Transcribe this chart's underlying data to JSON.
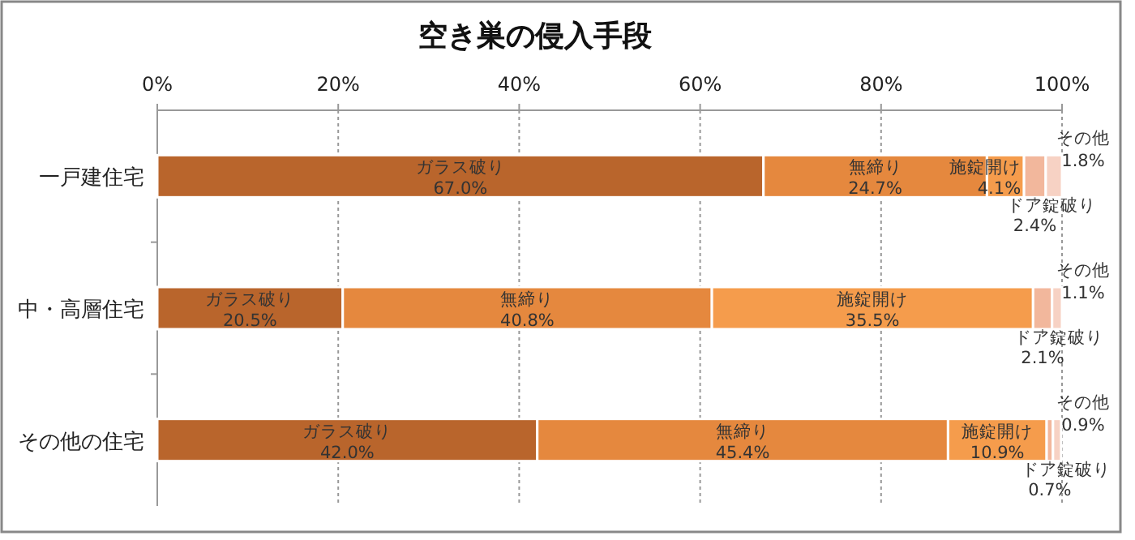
{
  "chart_data": {
    "type": "bar",
    "orientation": "horizontal",
    "stacked": true,
    "title": "空き巣の侵入手段",
    "categories": [
      "一戸建住宅",
      "中・高層住宅",
      "その他の住宅"
    ],
    "series": [
      {
        "name": "ガラス破り",
        "color": "#b9652c",
        "values": [
          67.0,
          20.5,
          42.0
        ],
        "value_labels": [
          "67.0%",
          "20.5%",
          "42.0%"
        ]
      },
      {
        "name": "無締り",
        "color": "#e5883e",
        "values": [
          24.7,
          40.8,
          45.4
        ],
        "value_labels": [
          "24.7%",
          "40.8%",
          "45.4%"
        ]
      },
      {
        "name": "施錠開け",
        "color": "#f59c4c",
        "values": [
          4.1,
          35.5,
          10.9
        ],
        "value_labels": [
          "4.1%",
          "35.5%",
          "10.9%"
        ]
      },
      {
        "name": "ドア錠破り",
        "color": "#f2b79c",
        "values": [
          2.4,
          2.1,
          0.7
        ],
        "value_labels": [
          "2.4%",
          "2.1%",
          "0.7%"
        ]
      },
      {
        "name": "その他",
        "color": "#f7d2c4",
        "values": [
          1.8,
          1.1,
          0.9
        ],
        "value_labels": [
          "1.8%",
          "1.1%",
          "0.9%"
        ]
      }
    ],
    "xlim": [
      0,
      100
    ],
    "xticks": [
      {
        "value": 0,
        "label": "0%"
      },
      {
        "value": 20,
        "label": "20%"
      },
      {
        "value": 40,
        "label": "40%"
      },
      {
        "value": 60,
        "label": "60%"
      },
      {
        "value": 80,
        "label": "80%"
      },
      {
        "value": 100,
        "label": "100%"
      }
    ],
    "grid": "x"
  }
}
